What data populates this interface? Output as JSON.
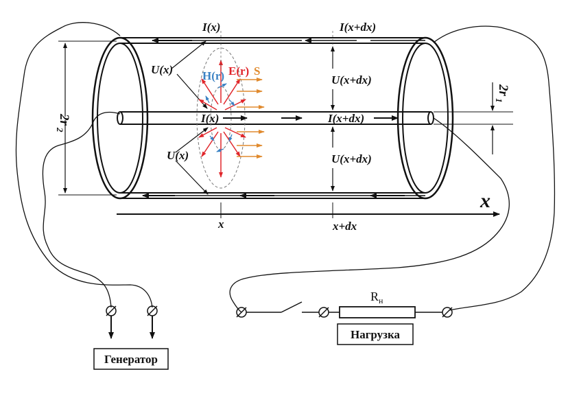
{
  "labels": {
    "current_top_left": "I(x)",
    "current_top_right": "I(x+dx)",
    "voltage_upper_left": "U(x)",
    "voltage_lower_left": "U(x)",
    "voltage_upper_right": "U(x+dx)",
    "voltage_lower_right": "U(x+dx)",
    "current_inner_left": "I(x)",
    "current_inner_right": "I(x+dx)",
    "magnetic_field": "H(r)",
    "electric_field": "E(r)",
    "poynting": "S",
    "outer_diameter": "2r",
    "outer_diameter_sub": "2",
    "inner_diameter": "2r",
    "inner_diameter_sub": "1",
    "axis_x": "x",
    "tick_x": "x",
    "tick_x_dx": "x+dx",
    "resistor": "R",
    "resistor_sub": "н"
  },
  "boxes": {
    "generator": "Генератор",
    "load": "Нагрузка"
  },
  "colors": {
    "electric_field": "#e0262b",
    "magnetic_field": "#3b82c4",
    "poynting": "#e08a2e",
    "ink": "#111111"
  }
}
